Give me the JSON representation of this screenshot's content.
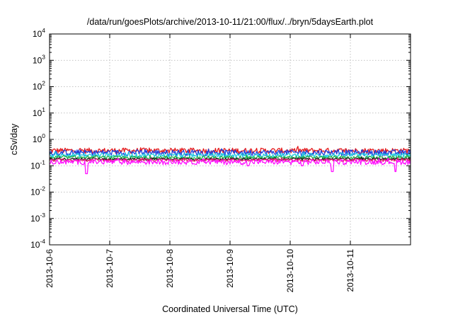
{
  "chart_data": {
    "type": "line",
    "title": "/data/run/goesPlots/archive/2013-10-11/21:00/flux/../bryn/5daysEarth.plot",
    "xlabel": "Coordinated Universal Time (UTC)",
    "ylabel": "cSv/day",
    "yscale": "log",
    "ylim": [
      0.0001,
      10000
    ],
    "xlim": [
      "2013-10-06",
      "2013-10-11 23:59"
    ],
    "grid": true,
    "x_ticks": [
      "2013-10-6",
      "2013-10-7",
      "2013-10-8",
      "2013-10-9",
      "2013-10-10",
      "2013-10-11"
    ],
    "y_ticks": [
      {
        "base": "10",
        "exp": "-4",
        "value": 0.0001
      },
      {
        "base": "10",
        "exp": "-3",
        "value": 0.001
      },
      {
        "base": "10",
        "exp": "-2",
        "value": 0.01
      },
      {
        "base": "10",
        "exp": "-1",
        "value": 0.1
      },
      {
        "base": "10",
        "exp": "0",
        "value": 1
      },
      {
        "base": "10",
        "exp": "1",
        "value": 10
      },
      {
        "base": "10",
        "exp": "2",
        "value": 100
      },
      {
        "base": "10",
        "exp": "3",
        "value": 1000
      },
      {
        "base": "10",
        "exp": "4",
        "value": 10000
      }
    ],
    "series": [
      {
        "color": "#e41a1c",
        "level": 0.38,
        "spread": 0.09,
        "dips": []
      },
      {
        "color": "#1f3fdd",
        "level": 0.32,
        "spread": 0.08,
        "dips": []
      },
      {
        "color": "#20c8e0",
        "level": 0.25,
        "spread": 0.05,
        "dips": []
      },
      {
        "color": "#22b34a",
        "level": 0.205,
        "spread": 0.03,
        "dips": []
      },
      {
        "color": "#222222",
        "level": 0.18,
        "spread": 0.02,
        "dips": []
      },
      {
        "color": "#e41a6c",
        "level": 0.165,
        "spread": 0.02,
        "dips": []
      },
      {
        "color": "#ff10ff",
        "level": 0.14,
        "spread": 0.03,
        "dips": [
          [
            0.61,
            0.05
          ],
          [
            3.3,
            0.1
          ],
          [
            4.2,
            0.1
          ],
          [
            4.7,
            0.06
          ],
          [
            5.75,
            0.06
          ]
        ]
      }
    ]
  }
}
